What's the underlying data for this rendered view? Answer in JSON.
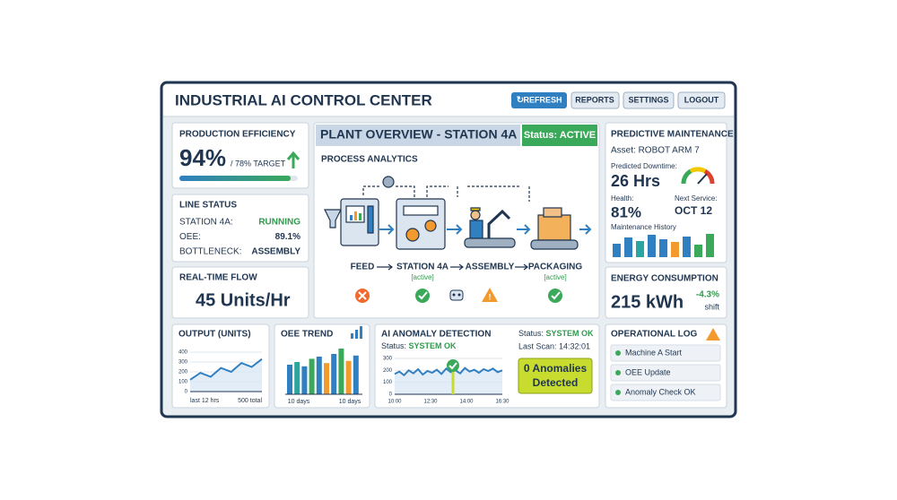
{
  "header": {
    "title": "INDUSTRIAL AI CONTROL CENTER",
    "buttons": [
      "REFRESH",
      "REPORTS",
      "SETTINGS",
      "LOGOUT"
    ]
  },
  "production_efficiency": {
    "title": "PRODUCTION EFFICIENCY",
    "value": 94,
    "value_label": "94%",
    "target": "/ 78% TARGET"
  },
  "line_status": {
    "title": "LINE STATUS",
    "rows": [
      [
        "STATION 4A:",
        "RUNNING"
      ],
      [
        "OEE:",
        "89.1%"
      ],
      [
        "BOTTLENECK:",
        "ASSEMBLY"
      ]
    ]
  },
  "realtime_flow": {
    "title": "REAL-TIME FLOW",
    "value": "45 Units/Hr"
  },
  "plant_overview": {
    "title": "PLANT OVERVIEW - STATION 4A",
    "status": "Status: ACTIVE",
    "section": "PROCESS ANALYTICS",
    "stages": [
      "FEED",
      "STATION 4A",
      "ASSEMBLY",
      "PACKAGING"
    ],
    "stage_notes": [
      null,
      "[active]",
      null,
      "[active]"
    ]
  },
  "predictive_maintenance": {
    "title": "PREDICTIVE MAINTENANCE",
    "asset": "Asset: ROBOT ARM 7",
    "downtime_label": "Predicted Downtime:",
    "downtime": "26 Hrs",
    "health_label": "Health:",
    "health": "81%",
    "next_label": "Next Service:",
    "next": "OCT 12",
    "history_label": "Maintenance History",
    "history": {
      "values": [
        15,
        22,
        18,
        25,
        20,
        17,
        23,
        14,
        26
      ],
      "colors": [
        "#2f7fc1",
        "#2f7fc1",
        "#2aa6a0",
        "#2f7fc1",
        "#2f7fc1",
        "#f29a2e",
        "#2f7fc1",
        "#3aa95a",
        "#3aa95a"
      ]
    }
  },
  "energy": {
    "title": "ENERGY CONSUMPTION",
    "value": "215 kWh",
    "change": "-4.3%",
    "change_unit": "shift"
  },
  "output": {
    "title": "OUTPUT (UNITS)",
    "type": "line",
    "values": [
      120,
      190,
      150,
      240,
      200,
      290,
      250,
      330
    ],
    "ylim": [
      0,
      400
    ],
    "yticks": [
      0,
      100,
      200,
      300,
      400
    ],
    "footer_left": "last 12 hrs",
    "footer_right": "500 total",
    "color": "#2f7fc1"
  },
  "oee_trend": {
    "title": "OEE TREND",
    "type": "bar",
    "values": [
      55,
      60,
      52,
      66,
      70,
      58,
      75,
      85,
      62,
      72
    ],
    "colors": [
      "#2f7fc1",
      "#2aa6a0",
      "#2f7fc1",
      "#3aa95a",
      "#2f7fc1",
      "#f29a2e",
      "#2f7fc1",
      "#3aa95a",
      "#f29a2e",
      "#2f7fc1"
    ],
    "footer_left": "10 days",
    "footer_right": "10 days"
  },
  "anomaly": {
    "title": "AI ANOMALY DETECTION",
    "status_label": "Status:",
    "status": "SYSTEM OK",
    "status_right_label": "Status:",
    "status_right": "SYSTEM OK",
    "last_scan": "Last Scan: 14:32:01",
    "badge": [
      "0 Anomalies",
      "Detected"
    ],
    "type": "line",
    "values": [
      170,
      190,
      160,
      200,
      175,
      210,
      165,
      195,
      180,
      205,
      170,
      215,
      185,
      200,
      175,
      220,
      190,
      205,
      180,
      210,
      195,
      215,
      185,
      200
    ],
    "ylim": [
      0,
      300
    ],
    "yticks": [
      0,
      100,
      200,
      300
    ],
    "xlabels": [
      "10:00",
      "12:30",
      "14:00",
      "16:30"
    ],
    "color": "#2f7fc1"
  },
  "log": {
    "title": "OPERATIONAL LOG",
    "entries": [
      "Machine A Start",
      "OEE Update",
      "Anomaly Check OK"
    ]
  }
}
